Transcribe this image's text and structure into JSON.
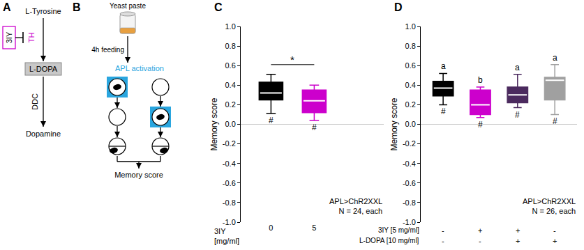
{
  "diagrams": {
    "A": {
      "panel": "A",
      "nodes": [
        "L-Tyrosine",
        "L-DOPA",
        "Dopamine"
      ],
      "enzymes": [
        "TH",
        "DDC"
      ],
      "inhibitor": "3IY"
    },
    "B": {
      "panel": "B",
      "food": "Yeast paste",
      "feeding": "4h feeding",
      "activation": "APL activation",
      "readout": "Memory score"
    }
  },
  "chart_data": [
    {
      "type": "box",
      "panel": "C",
      "ylabel": "Memory score",
      "xlabel": "3IY [mg/ml]",
      "categories": [
        "0",
        "5"
      ],
      "series": [
        {
          "color": "#000000",
          "min": 0.11,
          "q1": 0.25,
          "median": 0.32,
          "q3": 0.43,
          "max": 0.51
        },
        {
          "color": "#cc00cc",
          "min": 0.04,
          "q1": 0.12,
          "median": 0.24,
          "q3": 0.35,
          "max": 0.4
        }
      ],
      "sig_below": [
        "#",
        "#"
      ],
      "comparisons": [
        {
          "from": 0,
          "to": 1,
          "label": "*"
        }
      ],
      "notes": [
        "APL>ChR2XXL",
        "N = 24, each"
      ],
      "ylim": [
        -1,
        1
      ],
      "yticks": [
        {
          "value": -1,
          "label": "-1.0"
        },
        {
          "value": -0.8,
          "label": "-0.8"
        },
        {
          "value": -0.6,
          "label": "-0.6"
        },
        {
          "value": -0.4,
          "label": "-0.4"
        },
        {
          "value": -0.2,
          "label": "-0.2"
        },
        {
          "value": 0,
          "label": "0.0"
        },
        {
          "value": 0.2,
          "label": "0.2"
        },
        {
          "value": 0.4,
          "label": "0.4"
        },
        {
          "value": 0.6,
          "label": "0.6"
        },
        {
          "value": 0.8,
          "label": "0.8"
        },
        {
          "value": 1,
          "label": "1.0"
        }
      ],
      "grid": false
    },
    {
      "type": "box",
      "panel": "D",
      "ylabel": "Memory score",
      "categories": [
        null,
        null,
        null,
        null
      ],
      "x_table": [
        {
          "label": "3IY [5 mg/ml]",
          "values": [
            "-",
            "+",
            "+",
            "-"
          ]
        },
        {
          "label": "L-DOPA [10 mg/ml]",
          "values": [
            "-",
            "-",
            "+",
            "+"
          ]
        }
      ],
      "series": [
        {
          "color": "#000000",
          "min": 0.2,
          "q1": 0.29,
          "median": 0.37,
          "q3": 0.44,
          "max": 0.52
        },
        {
          "color": "#cc00cc",
          "min": 0.07,
          "q1": 0.1,
          "median": 0.2,
          "q3": 0.35,
          "max": 0.38
        },
        {
          "color": "#4b2a5e",
          "min": 0.17,
          "q1": 0.22,
          "median": 0.3,
          "q3": 0.38,
          "max": 0.51
        },
        {
          "color": "#a0a0a0",
          "min": 0.1,
          "q1": 0.25,
          "median": 0.45,
          "q3": 0.48,
          "max": 0.61
        }
      ],
      "sig_above": [
        "a",
        "b",
        "a",
        "a"
      ],
      "sig_below": [
        "#",
        "#",
        "#",
        "#"
      ],
      "notes": [
        "APL>ChR2XXL",
        "N = 26, each"
      ],
      "ylim": [
        -1,
        1
      ],
      "yticks": [
        {
          "value": -1,
          "label": "-1.0"
        },
        {
          "value": -0.8,
          "label": "-0.8"
        },
        {
          "value": -0.6,
          "label": "-0.6"
        },
        {
          "value": -0.4,
          "label": "-0.4"
        },
        {
          "value": -0.2,
          "label": "-0.2"
        },
        {
          "value": 0,
          "label": "0.0"
        },
        {
          "value": 0.2,
          "label": "0.2"
        },
        {
          "value": 0.4,
          "label": "0.4"
        },
        {
          "value": 0.6,
          "label": "0.6"
        },
        {
          "value": 0.8,
          "label": "0.8"
        },
        {
          "value": 1,
          "label": "1.0"
        }
      ],
      "tick_labels": "y",
      "grid": false
    }
  ]
}
